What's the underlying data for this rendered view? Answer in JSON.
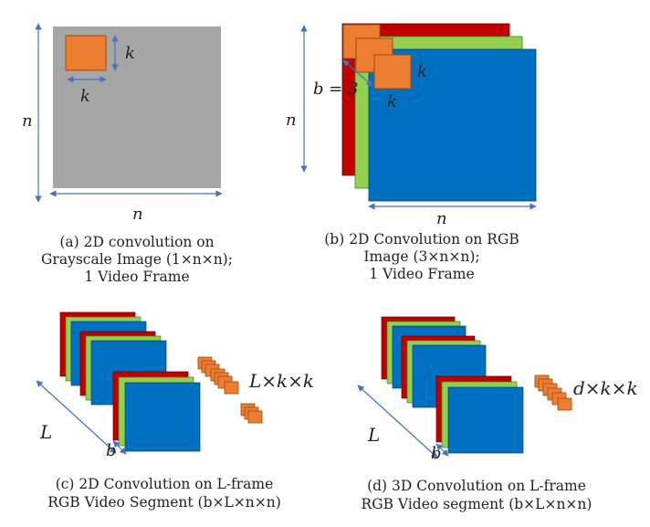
{
  "colors": {
    "gray": "#a6a6a6",
    "orange": "#ed7d31",
    "red": "#c00000",
    "green": "#92d050",
    "blue": "#0070c0",
    "arrow": "#4472c4"
  },
  "panel_a": {
    "n_left": "n",
    "n_bottom": "n",
    "k_right": "k",
    "k_bottom": "k",
    "caption": [
      "(a) 2D convolution on",
      "Grayscale Image (1×n×n);",
      "1 Video Frame"
    ]
  },
  "panel_b": {
    "n_left": "n",
    "n_bottom": "n",
    "b_label": "b = 3",
    "k_right": "k",
    "k_bottom": "k",
    "caption": [
      "(b) 2D Convolution on RGB",
      "Image (3×n×n);",
      "1 Video Frame"
    ]
  },
  "panel_c": {
    "L_label": "L",
    "b_label": "b",
    "kernel_label": "L×k×k",
    "caption": [
      "(c) 2D Convolution on L-frame",
      "RGB Video Segment (b×L×n×n)"
    ]
  },
  "panel_d": {
    "L_label": "L",
    "b_label": "b",
    "kernel_label": "d×k×k",
    "caption": [
      "(d) 3D Convolution on L-frame",
      "RGB Video segment (b×L×n×n)"
    ]
  }
}
